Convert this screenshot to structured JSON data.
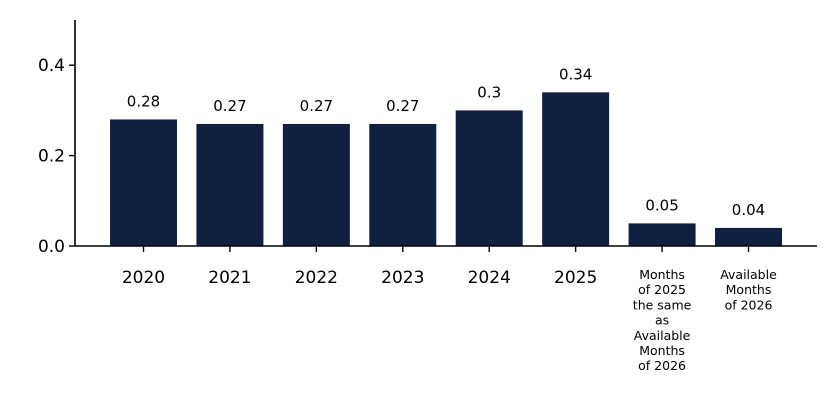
{
  "chart_data": {
    "type": "bar",
    "title": "",
    "xlabel": "",
    "ylabel": "",
    "ylim": [
      0,
      0.5
    ],
    "yticks": [
      0.0,
      0.2,
      0.4
    ],
    "ytick_labels": [
      "0.0",
      "0.2",
      "0.4"
    ],
    "grid": false,
    "categories": [
      "2020",
      "2021",
      "2022",
      "2023",
      "2024",
      "2025",
      "Months\nof 2025\nthe same\nas\nAvailable\nMonths\nof 2026",
      "Available\nMonths\nof 2026"
    ],
    "values": [
      0.28,
      0.27,
      0.27,
      0.27,
      0.3,
      0.34,
      0.05,
      0.04
    ],
    "value_labels": [
      "0.28",
      "0.27",
      "0.27",
      "0.27",
      "0.3",
      "0.34",
      "0.05",
      "0.04"
    ],
    "bar_color": "#112040"
  }
}
